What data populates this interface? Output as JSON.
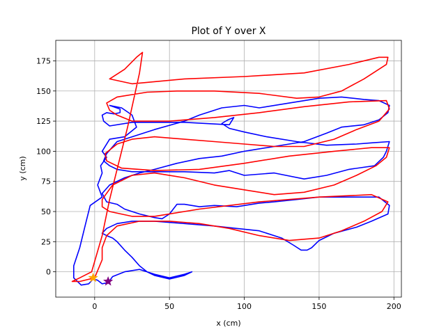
{
  "chart_data": {
    "type": "line",
    "title": "Plot of Y over X",
    "xlabel": "x (cm)",
    "ylabel": "y (cm)",
    "xlim": [
      -26,
      205
    ],
    "ylim": [
      -21,
      192
    ],
    "xticks": [
      0,
      50,
      100,
      150,
      200
    ],
    "yticks": [
      0,
      25,
      50,
      75,
      100,
      125,
      150,
      175
    ],
    "grid": true,
    "series": [
      {
        "color": "#0000ff",
        "style": "line",
        "points": [
          [
            9,
            -9
          ],
          [
            5,
            -10
          ],
          [
            2,
            -7
          ],
          [
            -1,
            -6
          ],
          [
            -4,
            -10
          ],
          [
            -9,
            -11
          ],
          [
            -14,
            -5
          ],
          [
            -14,
            5
          ],
          [
            -10,
            20
          ],
          [
            -6,
            40
          ],
          [
            -3,
            55
          ],
          [
            5,
            62
          ],
          [
            2,
            72
          ],
          [
            5,
            82
          ],
          [
            4,
            88
          ],
          [
            8,
            95
          ],
          [
            5,
            100
          ],
          [
            10,
            110
          ],
          [
            20,
            112
          ],
          [
            28,
            120
          ],
          [
            25,
            130
          ],
          [
            18,
            136
          ],
          [
            10,
            138
          ],
          [
            17,
            135
          ],
          [
            17,
            132
          ],
          [
            13,
            131
          ],
          [
            8,
            132
          ],
          [
            5,
            130
          ],
          [
            6,
            125
          ],
          [
            10,
            121
          ],
          [
            25,
            124
          ],
          [
            60,
            124
          ],
          [
            90,
            122
          ],
          [
            93,
            128
          ],
          [
            89,
            126
          ],
          [
            85,
            123
          ],
          [
            90,
            119
          ],
          [
            100,
            116
          ],
          [
            115,
            112
          ],
          [
            135,
            108
          ],
          [
            155,
            105
          ],
          [
            175,
            106
          ],
          [
            185,
            107
          ],
          [
            197,
            108
          ],
          [
            195,
            100
          ],
          [
            193,
            95
          ],
          [
            187,
            88
          ],
          [
            170,
            85
          ],
          [
            155,
            80
          ],
          [
            140,
            77
          ],
          [
            120,
            82
          ],
          [
            100,
            80
          ],
          [
            90,
            84
          ],
          [
            80,
            82
          ],
          [
            60,
            83
          ],
          [
            40,
            83
          ],
          [
            25,
            83
          ],
          [
            15,
            85
          ],
          [
            10,
            88
          ],
          [
            6,
            92
          ],
          [
            8,
            98
          ],
          [
            15,
            108
          ],
          [
            25,
            112
          ],
          [
            40,
            118
          ],
          [
            60,
            125
          ],
          [
            70,
            130
          ],
          [
            85,
            136
          ],
          [
            100,
            138
          ],
          [
            110,
            136
          ],
          [
            130,
            140
          ],
          [
            150,
            144
          ],
          [
            165,
            145
          ],
          [
            180,
            143
          ],
          [
            190,
            142
          ],
          [
            197,
            138
          ],
          [
            196,
            132
          ],
          [
            190,
            126
          ],
          [
            180,
            122
          ],
          [
            165,
            120
          ],
          [
            155,
            115
          ],
          [
            140,
            108
          ],
          [
            120,
            104
          ],
          [
            100,
            100
          ],
          [
            85,
            96
          ],
          [
            70,
            94
          ],
          [
            55,
            90
          ],
          [
            40,
            85
          ],
          [
            30,
            82
          ],
          [
            20,
            78
          ],
          [
            10,
            72
          ],
          [
            5,
            65
          ],
          [
            8,
            58
          ],
          [
            15,
            56
          ],
          [
            20,
            52
          ],
          [
            30,
            48
          ],
          [
            40,
            45
          ],
          [
            45,
            44
          ],
          [
            50,
            48
          ],
          [
            55,
            56
          ],
          [
            60,
            56
          ],
          [
            70,
            54
          ],
          [
            80,
            55
          ],
          [
            95,
            54
          ],
          [
            110,
            57
          ],
          [
            120,
            58
          ],
          [
            135,
            60
          ],
          [
            150,
            62
          ],
          [
            165,
            62
          ],
          [
            180,
            62
          ],
          [
            190,
            62
          ],
          [
            197,
            55
          ],
          [
            196,
            48
          ],
          [
            185,
            42
          ],
          [
            175,
            37
          ],
          [
            160,
            32
          ],
          [
            150,
            26
          ],
          [
            145,
            20
          ],
          [
            142,
            18
          ],
          [
            138,
            18
          ],
          [
            133,
            22
          ],
          [
            125,
            28
          ],
          [
            110,
            34
          ],
          [
            95,
            36
          ],
          [
            80,
            38
          ],
          [
            60,
            40
          ],
          [
            40,
            42
          ],
          [
            25,
            42
          ],
          [
            15,
            40
          ],
          [
            8,
            36
          ],
          [
            5,
            32
          ],
          [
            8,
            30
          ],
          [
            12,
            28
          ],
          [
            15,
            25
          ],
          [
            20,
            18
          ],
          [
            25,
            12
          ],
          [
            30,
            5
          ],
          [
            35,
            0
          ],
          [
            40,
            -2
          ],
          [
            50,
            -5
          ],
          [
            60,
            -2
          ],
          [
            65,
            0
          ],
          [
            60,
            -3
          ],
          [
            50,
            -6
          ],
          [
            40,
            -3
          ],
          [
            35,
            0
          ],
          [
            30,
            2
          ],
          [
            20,
            0
          ],
          [
            12,
            -4
          ],
          [
            9,
            -9
          ]
        ]
      },
      {
        "color": "#ff0000",
        "style": "line",
        "points": [
          [
            -15,
            -8
          ],
          [
            -10,
            -5
          ],
          [
            -2,
            0
          ],
          [
            5,
            30
          ],
          [
            10,
            60
          ],
          [
            15,
            85
          ],
          [
            22,
            120
          ],
          [
            30,
            165
          ],
          [
            32,
            182
          ],
          [
            28,
            178
          ],
          [
            20,
            168
          ],
          [
            10,
            160
          ],
          [
            25,
            156
          ],
          [
            60,
            160
          ],
          [
            100,
            162
          ],
          [
            140,
            165
          ],
          [
            170,
            172
          ],
          [
            190,
            178
          ],
          [
            196,
            178
          ],
          [
            195,
            172
          ],
          [
            180,
            160
          ],
          [
            165,
            150
          ],
          [
            150,
            145
          ],
          [
            135,
            144
          ],
          [
            110,
            148
          ],
          [
            80,
            150
          ],
          [
            55,
            150
          ],
          [
            35,
            149
          ],
          [
            15,
            145
          ],
          [
            8,
            140
          ],
          [
            10,
            134
          ],
          [
            15,
            130
          ],
          [
            25,
            125
          ],
          [
            50,
            125
          ],
          [
            80,
            128
          ],
          [
            110,
            132
          ],
          [
            140,
            137
          ],
          [
            170,
            141
          ],
          [
            195,
            142
          ],
          [
            197,
            135
          ],
          [
            190,
            125
          ],
          [
            175,
            118
          ],
          [
            160,
            110
          ],
          [
            140,
            104
          ],
          [
            120,
            104
          ],
          [
            100,
            106
          ],
          [
            80,
            108
          ],
          [
            60,
            110
          ],
          [
            40,
            112
          ],
          [
            25,
            110
          ],
          [
            15,
            106
          ],
          [
            7,
            98
          ],
          [
            8,
            92
          ],
          [
            18,
            86
          ],
          [
            40,
            84
          ],
          [
            70,
            85
          ],
          [
            100,
            90
          ],
          [
            130,
            96
          ],
          [
            160,
            100
          ],
          [
            185,
            103
          ],
          [
            197,
            103
          ],
          [
            195,
            95
          ],
          [
            188,
            88
          ],
          [
            175,
            80
          ],
          [
            160,
            72
          ],
          [
            140,
            66
          ],
          [
            120,
            64
          ],
          [
            100,
            68
          ],
          [
            80,
            72
          ],
          [
            60,
            78
          ],
          [
            40,
            82
          ],
          [
            25,
            80
          ],
          [
            12,
            72
          ],
          [
            5,
            60
          ],
          [
            5,
            54
          ],
          [
            10,
            50
          ],
          [
            25,
            46
          ],
          [
            40,
            46
          ],
          [
            70,
            52
          ],
          [
            110,
            58
          ],
          [
            150,
            62
          ],
          [
            185,
            64
          ],
          [
            196,
            58
          ],
          [
            192,
            50
          ],
          [
            180,
            42
          ],
          [
            165,
            34
          ],
          [
            150,
            28
          ],
          [
            130,
            26
          ],
          [
            110,
            30
          ],
          [
            90,
            36
          ],
          [
            70,
            40
          ],
          [
            50,
            42
          ],
          [
            30,
            42
          ],
          [
            15,
            38
          ],
          [
            8,
            30
          ],
          [
            5,
            20
          ],
          [
            5,
            10
          ],
          [
            0,
            -5
          ],
          [
            -10,
            -8
          ],
          [
            -15,
            -8
          ]
        ]
      }
    ],
    "markers": [
      {
        "shape": "star",
        "color": "#ffa500",
        "x": -1,
        "y": -5
      },
      {
        "shape": "star",
        "color": "#800080",
        "x": 9,
        "y": -8
      }
    ]
  }
}
